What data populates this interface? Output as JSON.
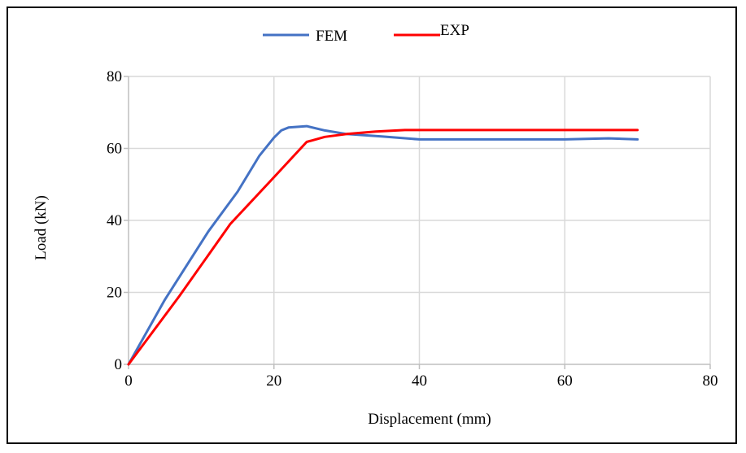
{
  "chart_data": {
    "type": "line",
    "title": "",
    "xlabel": "Displacement (mm)",
    "ylabel": "Load (kN)",
    "xlim": [
      0,
      80
    ],
    "ylim": [
      0,
      80
    ],
    "x_ticks": [
      "0",
      "20",
      "40",
      "60",
      "80"
    ],
    "y_ticks": [
      "0",
      "20",
      "40",
      "60",
      "80"
    ],
    "grid": true,
    "legend_position": "top",
    "series": [
      {
        "name": "FEM",
        "color": "#4472C4",
        "x": [
          0,
          5,
          11,
          15,
          18,
          20,
          21,
          22,
          24.5,
          27,
          30,
          35,
          40,
          50,
          60,
          66,
          70
        ],
        "y": [
          0,
          18,
          37,
          48,
          58,
          63,
          65,
          65.8,
          66.2,
          65,
          64,
          63.3,
          62.5,
          62.5,
          62.5,
          62.8,
          62.5
        ]
      },
      {
        "name": "EXP",
        "color": "#FF0000",
        "x": [
          0,
          7,
          14,
          20,
          24.5,
          27,
          30,
          34,
          38,
          45,
          55,
          65,
          70
        ],
        "y": [
          0,
          19,
          39,
          52,
          61.8,
          63.2,
          64,
          64.7,
          65.1,
          65.1,
          65.1,
          65.1,
          65.1
        ]
      }
    ]
  }
}
